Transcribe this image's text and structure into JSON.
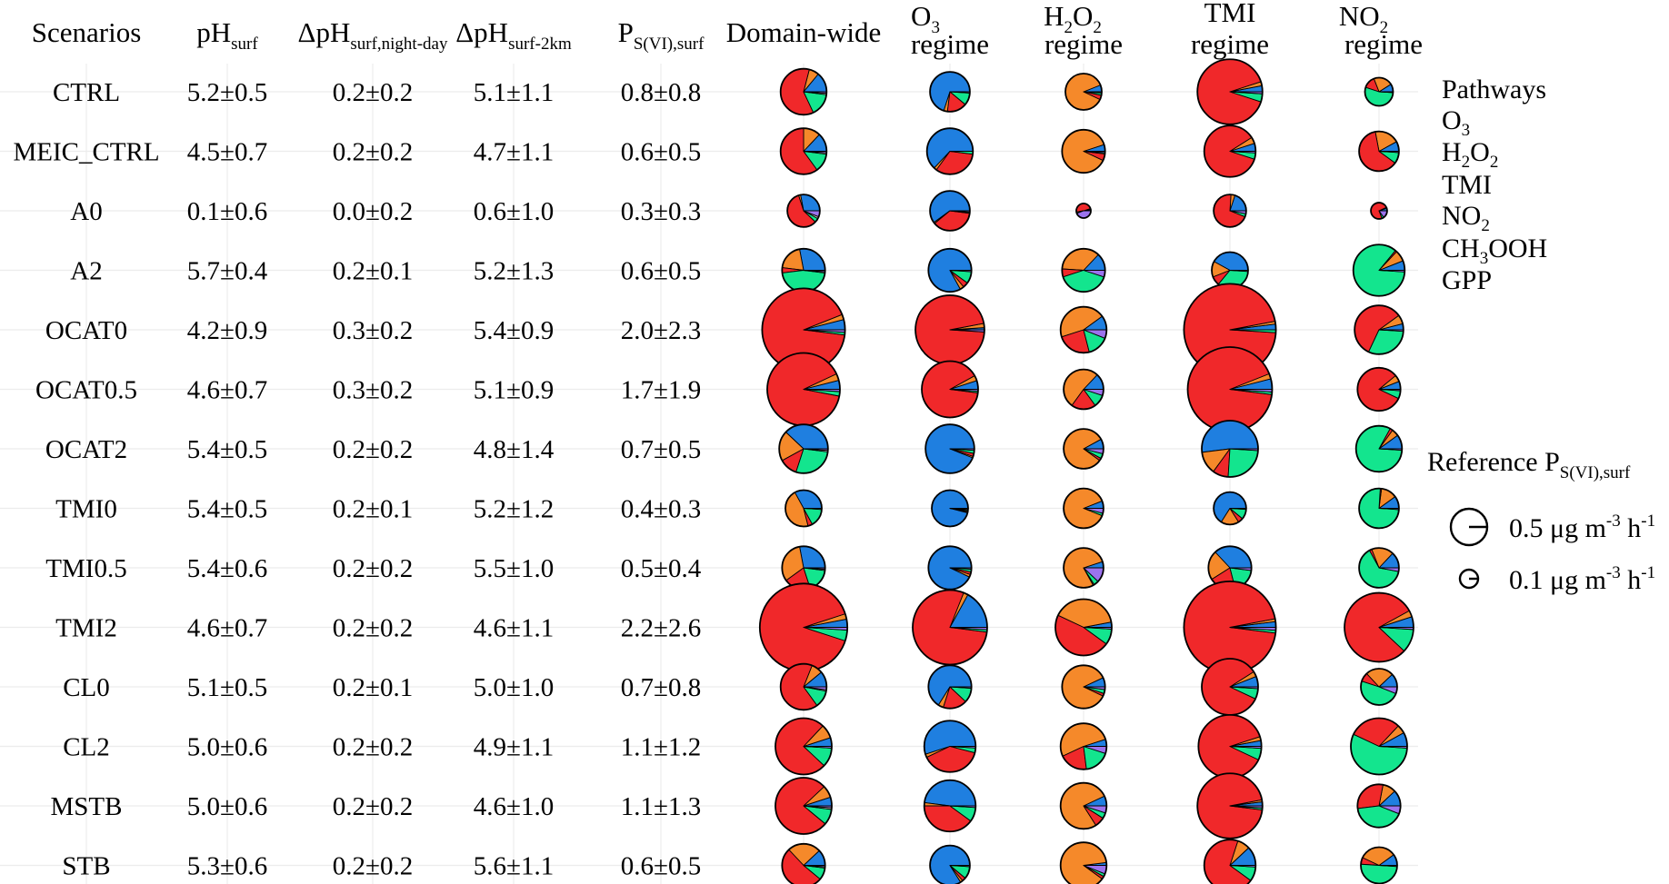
{
  "chart_data": {
    "type": "table",
    "columns": {
      "scenario": "Scenarios",
      "ph_surf": {
        "base": "pH",
        "sub": "surf"
      },
      "dph_night_day": {
        "base": "ΔpH",
        "sub": "surf,night-day"
      },
      "dph_surf_2km": {
        "base": "ΔpH",
        "sub": "surf-2km"
      },
      "p_svi_surf": {
        "base": "P",
        "sub": "S(VI),surf"
      },
      "domain_wide": "Domain-wide",
      "o3_regime": {
        "l1_base": "O",
        "l1_sub": "3",
        "l2": "regime"
      },
      "h2o2_regime": {
        "l1_parts": [
          "H",
          "2",
          "O",
          "2"
        ],
        "l2": "regime"
      },
      "tmi_regime": {
        "l1": "TMI",
        "l2": "regime"
      },
      "no2_regime": {
        "l1_base": "NO",
        "l1_sub": "2",
        "l2": "regime"
      }
    },
    "pathways": [
      "O3",
      "H2O2",
      "TMI",
      "NO2",
      "CH3OOH",
      "GPP"
    ],
    "rows": [
      {
        "scenario": "CTRL",
        "ph": "5.2±0.5",
        "dph_nd": "0.2±0.2",
        "dph_2km": "5.1±1.1",
        "p": "0.8±0.8",
        "pies": [
          {
            "size": 0.8,
            "f": [
              0.14,
              0.07,
              0.61,
              0.16,
              0.01,
              0.01
            ]
          },
          {
            "size": 0.6,
            "f": [
              0.7,
              0.03,
              0.16,
              0.1,
              0.0,
              0.01
            ]
          },
          {
            "size": 0.5,
            "f": [
              0.06,
              0.87,
              0.04,
              0.02,
              0.0,
              0.01
            ]
          },
          {
            "size": 1.6,
            "f": [
              0.03,
              0.02,
              0.9,
              0.04,
              0.0,
              0.01
            ]
          },
          {
            "size": 0.3,
            "f": [
              0.09,
              0.22,
              0.14,
              0.54,
              0.0,
              0.01
            ]
          }
        ]
      },
      {
        "scenario": "MEIC_CTRL",
        "ph": "4.5±0.7",
        "dph_nd": "0.2±0.2",
        "dph_2km": "4.7±1.1",
        "p": "0.6±0.5",
        "pies": [
          {
            "size": 0.8,
            "f": [
              0.13,
              0.12,
              0.6,
              0.13,
              0.01,
              0.01
            ]
          },
          {
            "size": 0.8,
            "f": [
              0.63,
              0.02,
              0.33,
              0.02,
              0.0,
              0.0
            ]
          },
          {
            "size": 0.7,
            "f": [
              0.05,
              0.88,
              0.05,
              0.01,
              0.0,
              0.01
            ]
          },
          {
            "size": 1.0,
            "f": [
              0.05,
              0.04,
              0.86,
              0.04,
              0.0,
              0.01
            ]
          },
          {
            "size": 0.6,
            "f": [
              0.08,
              0.2,
              0.62,
              0.09,
              0.0,
              0.01
            ]
          }
        ]
      },
      {
        "scenario": "A0",
        "ph": "0.1±0.6",
        "dph_nd": "0.0±0.2",
        "dph_2km": "0.6±1.0",
        "p": "0.3±0.3",
        "pies": [
          {
            "size": 0.4,
            "f": [
              0.28,
              0.02,
              0.58,
              0.04,
              0.02,
              0.06
            ]
          },
          {
            "size": 0.6,
            "f": [
              0.6,
              0.01,
              0.37,
              0.01,
              0.0,
              0.01
            ]
          },
          {
            "size": 0.08,
            "f": [
              0.03,
              0.02,
              0.48,
              0.03,
              0.0,
              0.44
            ]
          },
          {
            "size": 0.4,
            "f": [
              0.2,
              0.04,
              0.7,
              0.03,
              0.0,
              0.03
            ]
          },
          {
            "size": 0.1,
            "f": [
              0.05,
              0.02,
              0.74,
              0.04,
              0.0,
              0.15
            ]
          }
        ]
      },
      {
        "scenario": "A2",
        "ph": "5.7±0.4",
        "dph_nd": "0.2±0.1",
        "dph_2km": "5.2±1.3",
        "p": "0.6±0.5",
        "pies": [
          {
            "size": 0.7,
            "f": [
              0.28,
              0.2,
              0.04,
              0.46,
              0.01,
              0.01
            ]
          },
          {
            "size": 0.7,
            "f": [
              0.83,
              0.03,
              0.04,
              0.09,
              0.0,
              0.01
            ]
          },
          {
            "size": 0.7,
            "f": [
              0.13,
              0.36,
              0.06,
              0.4,
              0.0,
              0.05
            ]
          },
          {
            "size": 0.5,
            "f": [
              0.42,
              0.14,
              0.08,
              0.35,
              0.0,
              0.01
            ]
          },
          {
            "size": 1.0,
            "f": [
              0.06,
              0.07,
              0.01,
              0.85,
              0.0,
              0.01
            ]
          }
        ]
      },
      {
        "scenario": "OCAT0",
        "ph": "4.2±0.9",
        "dph_nd": "0.3±0.2",
        "dph_2km": "5.4±0.9",
        "p": "2.0±2.3",
        "pies": [
          {
            "size": 2.6,
            "f": [
              0.04,
              0.02,
              0.92,
              0.01,
              0.0,
              0.01
            ]
          },
          {
            "size": 1.8,
            "f": [
              0.01,
              0.02,
              0.96,
              0.0,
              0.0,
              0.01
            ]
          },
          {
            "size": 0.8,
            "f": [
              0.1,
              0.45,
              0.24,
              0.15,
              0.0,
              0.06
            ]
          },
          {
            "size": 3.2,
            "f": [
              0.02,
              0.01,
              0.96,
              0.01,
              0.0,
              0.0
            ]
          },
          {
            "size": 0.9,
            "f": [
              0.04,
              0.06,
              0.58,
              0.31,
              0.0,
              0.01
            ]
          }
        ]
      },
      {
        "scenario": "OCAT0.5",
        "ph": "4.6±0.7",
        "dph_nd": "0.3±0.2",
        "dph_2km": "5.1±0.9",
        "p": "1.7±1.9",
        "pies": [
          {
            "size": 2.0,
            "f": [
              0.04,
              0.03,
              0.9,
              0.02,
              0.0,
              0.01
            ]
          },
          {
            "size": 1.2,
            "f": [
              0.05,
              0.03,
              0.9,
              0.01,
              0.0,
              0.01
            ]
          },
          {
            "size": 0.6,
            "f": [
              0.13,
              0.52,
              0.2,
              0.1,
              0.0,
              0.05
            ]
          },
          {
            "size": 2.7,
            "f": [
              0.04,
              0.02,
              0.92,
              0.01,
              0.0,
              0.01
            ]
          },
          {
            "size": 0.7,
            "f": [
              0.06,
              0.05,
              0.82,
              0.06,
              0.0,
              0.01
            ]
          }
        ]
      },
      {
        "scenario": "OCAT2",
        "ph": "5.4±0.5",
        "dph_nd": "0.2±0.2",
        "dph_2km": "4.8±1.4",
        "p": "0.7±0.5",
        "pies": [
          {
            "size": 0.9,
            "f": [
              0.38,
              0.2,
              0.12,
              0.28,
              0.01,
              0.01
            ]
          },
          {
            "size": 0.9,
            "f": [
              0.94,
              0.01,
              0.02,
              0.02,
              0.0,
              0.01
            ]
          },
          {
            "size": 0.6,
            "f": [
              0.08,
              0.82,
              0.02,
              0.04,
              0.0,
              0.04
            ]
          },
          {
            "size": 1.2,
            "f": [
              0.52,
              0.13,
              0.09,
              0.25,
              0.0,
              0.01
            ]
          },
          {
            "size": 0.8,
            "f": [
              0.1,
              0.05,
              0.02,
              0.82,
              0.0,
              0.01
            ]
          }
        ]
      },
      {
        "scenario": "TMI0",
        "ph": "5.4±0.5",
        "dph_nd": "0.2±0.1",
        "dph_2km": "5.2±1.2",
        "p": "0.4±0.3",
        "pies": [
          {
            "size": 0.5,
            "f": [
              0.33,
              0.46,
              0.04,
              0.16,
              0.0,
              0.01
            ]
          },
          {
            "size": 0.5,
            "f": [
              0.96,
              0.01,
              0.01,
              0.01,
              0.0,
              0.01
            ]
          },
          {
            "size": 0.6,
            "f": [
              0.06,
              0.88,
              0.0,
              0.02,
              0.0,
              0.04
            ]
          },
          {
            "size": 0.4,
            "f": [
              0.66,
              0.18,
              0.05,
              0.1,
              0.0,
              0.01
            ]
          },
          {
            "size": 0.6,
            "f": [
              0.1,
              0.13,
              0.01,
              0.75,
              0.0,
              0.01
            ]
          }
        ]
      },
      {
        "scenario": "TMI0.5",
        "ph": "5.4±0.6",
        "dph_nd": "0.2±0.2",
        "dph_2km": "5.5±1.0",
        "p": "0.5±0.4",
        "pies": [
          {
            "size": 0.7,
            "f": [
              0.28,
              0.32,
              0.2,
              0.18,
              0.01,
              0.01
            ]
          },
          {
            "size": 0.7,
            "f": [
              0.93,
              0.02,
              0.02,
              0.02,
              0.0,
              0.01
            ]
          },
          {
            "size": 0.6,
            "f": [
              0.05,
              0.78,
              0.01,
              0.04,
              0.0,
              0.12
            ]
          },
          {
            "size": 0.7,
            "f": [
              0.37,
              0.22,
              0.2,
              0.19,
              0.0,
              0.02
            ]
          },
          {
            "size": 0.6,
            "f": [
              0.13,
              0.18,
              0.02,
              0.64,
              0.0,
              0.03
            ]
          }
        ]
      },
      {
        "scenario": "TMI2",
        "ph": "4.6±0.7",
        "dph_nd": "0.2±0.2",
        "dph_2km": "4.6±1.1",
        "p": "2.2±2.6",
        "pies": [
          {
            "size": 2.9,
            "f": [
              0.03,
              0.02,
              0.9,
              0.04,
              0.0,
              0.01
            ]
          },
          {
            "size": 2.1,
            "f": [
              0.17,
              0.02,
              0.79,
              0.01,
              0.0,
              0.01
            ]
          },
          {
            "size": 1.2,
            "f": [
              0.03,
              0.4,
              0.47,
              0.09,
              0.0,
              0.01
            ]
          },
          {
            "size": 3.2,
            "f": [
              0.02,
              0.01,
              0.95,
              0.01,
              0.0,
              0.01
            ]
          },
          {
            "size": 1.8,
            "f": [
              0.05,
              0.03,
              0.8,
              0.11,
              0.0,
              0.01
            ]
          }
        ]
      },
      {
        "scenario": "CL0",
        "ph": "5.1±0.5",
        "dph_nd": "0.2±0.1",
        "dph_2km": "5.0±1.0",
        "p": "0.7±0.8",
        "pies": [
          {
            "size": 0.8,
            "f": [
              0.11,
              0.08,
              0.66,
              0.12,
              0.01,
              0.02
            ]
          },
          {
            "size": 0.7,
            "f": [
              0.66,
              0.04,
              0.18,
              0.11,
              0.0,
              0.01
            ]
          },
          {
            "size": 0.7,
            "f": [
              0.07,
              0.86,
              0.02,
              0.03,
              0.0,
              0.02
            ]
          },
          {
            "size": 1.2,
            "f": [
              0.06,
              0.03,
              0.84,
              0.06,
              0.0,
              0.01
            ]
          },
          {
            "size": 0.5,
            "f": [
              0.12,
              0.25,
              0.08,
              0.49,
              0.0,
              0.06
            ]
          }
        ]
      },
      {
        "scenario": "CL2",
        "ph": "5.0±0.6",
        "dph_nd": "0.2±0.2",
        "dph_2km": "4.9±1.1",
        "p": "1.1±1.2",
        "pies": [
          {
            "size": 1.2,
            "f": [
              0.05,
              0.08,
              0.75,
              0.11,
              0.0,
              0.01
            ]
          },
          {
            "size": 1.0,
            "f": [
              0.55,
              0.02,
              0.39,
              0.03,
              0.0,
              0.01
            ]
          },
          {
            "size": 0.8,
            "f": [
              0.05,
              0.52,
              0.2,
              0.18,
              0.0,
              0.05
            ]
          },
          {
            "size": 1.5,
            "f": [
              0.03,
              0.02,
              0.88,
              0.06,
              0.0,
              0.01
            ]
          },
          {
            "size": 1.2,
            "f": [
              0.08,
              0.05,
              0.3,
              0.56,
              0.0,
              0.01
            ]
          }
        ]
      },
      {
        "scenario": "MSTB",
        "ph": "5.0±0.6",
        "dph_nd": "0.2±0.2",
        "dph_2km": "4.6±1.0",
        "p": "1.1±1.3",
        "pies": [
          {
            "size": 1.2,
            "f": [
              0.05,
              0.07,
              0.77,
              0.09,
              0.01,
              0.01
            ]
          },
          {
            "size": 1.0,
            "f": [
              0.48,
              0.02,
              0.4,
              0.09,
              0.0,
              0.01
            ]
          },
          {
            "size": 0.8,
            "f": [
              0.07,
              0.77,
              0.07,
              0.04,
              0.0,
              0.05
            ]
          },
          {
            "size": 1.6,
            "f": [
              0.02,
              0.01,
              0.95,
              0.01,
              0.0,
              0.01
            ]
          },
          {
            "size": 0.7,
            "f": [
              0.12,
              0.1,
              0.3,
              0.42,
              0.0,
              0.06
            ]
          }
        ]
      },
      {
        "scenario": "STB",
        "ph": "5.3±0.6",
        "dph_nd": "0.2±0.2",
        "dph_2km": "5.6±1.1",
        "p": "0.6±0.5",
        "pies": [
          {
            "size": 0.7,
            "f": [
              0.12,
              0.25,
              0.52,
              0.09,
              0.01,
              0.01
            ]
          },
          {
            "size": 0.6,
            "f": [
              0.84,
              0.02,
              0.03,
              0.1,
              0.0,
              0.01
            ]
          },
          {
            "size": 0.8,
            "f": [
              0.02,
              0.88,
              0.02,
              0.02,
              0.0,
              0.06
            ]
          },
          {
            "size": 1.0,
            "f": [
              0.12,
              0.08,
              0.7,
              0.09,
              0.0,
              0.01
            ]
          },
          {
            "size": 0.5,
            "f": [
              0.1,
              0.33,
              0.06,
              0.5,
              0.0,
              0.01
            ]
          }
        ]
      }
    ],
    "legend": {
      "pathways_title": "Pathways",
      "items": [
        {
          "base": "O",
          "sub": "3",
          "color": "#1f7fe0"
        },
        {
          "parts": [
            "H",
            "2",
            "O",
            "2"
          ],
          "color": "#f5892a"
        },
        {
          "base": "TMI",
          "color": "#f0282a"
        },
        {
          "base": "NO",
          "sub": "2",
          "color": "#13e58e"
        },
        {
          "parts": [
            "CH",
            "3",
            "OOH"
          ],
          "color": "#c8c8c8"
        },
        {
          "base": "GPP",
          "color": "#9b73ee"
        }
      ],
      "reference_title": {
        "base": "Reference P",
        "sub": "S(VI),surf"
      },
      "reference": [
        {
          "value": 0.5,
          "parts": [
            "0.5 μg m",
            "-3",
            " h",
            "-1"
          ]
        },
        {
          "value": 0.1,
          "parts": [
            "0.1 μg m",
            "-3",
            " h",
            "-1"
          ]
        }
      ]
    }
  }
}
